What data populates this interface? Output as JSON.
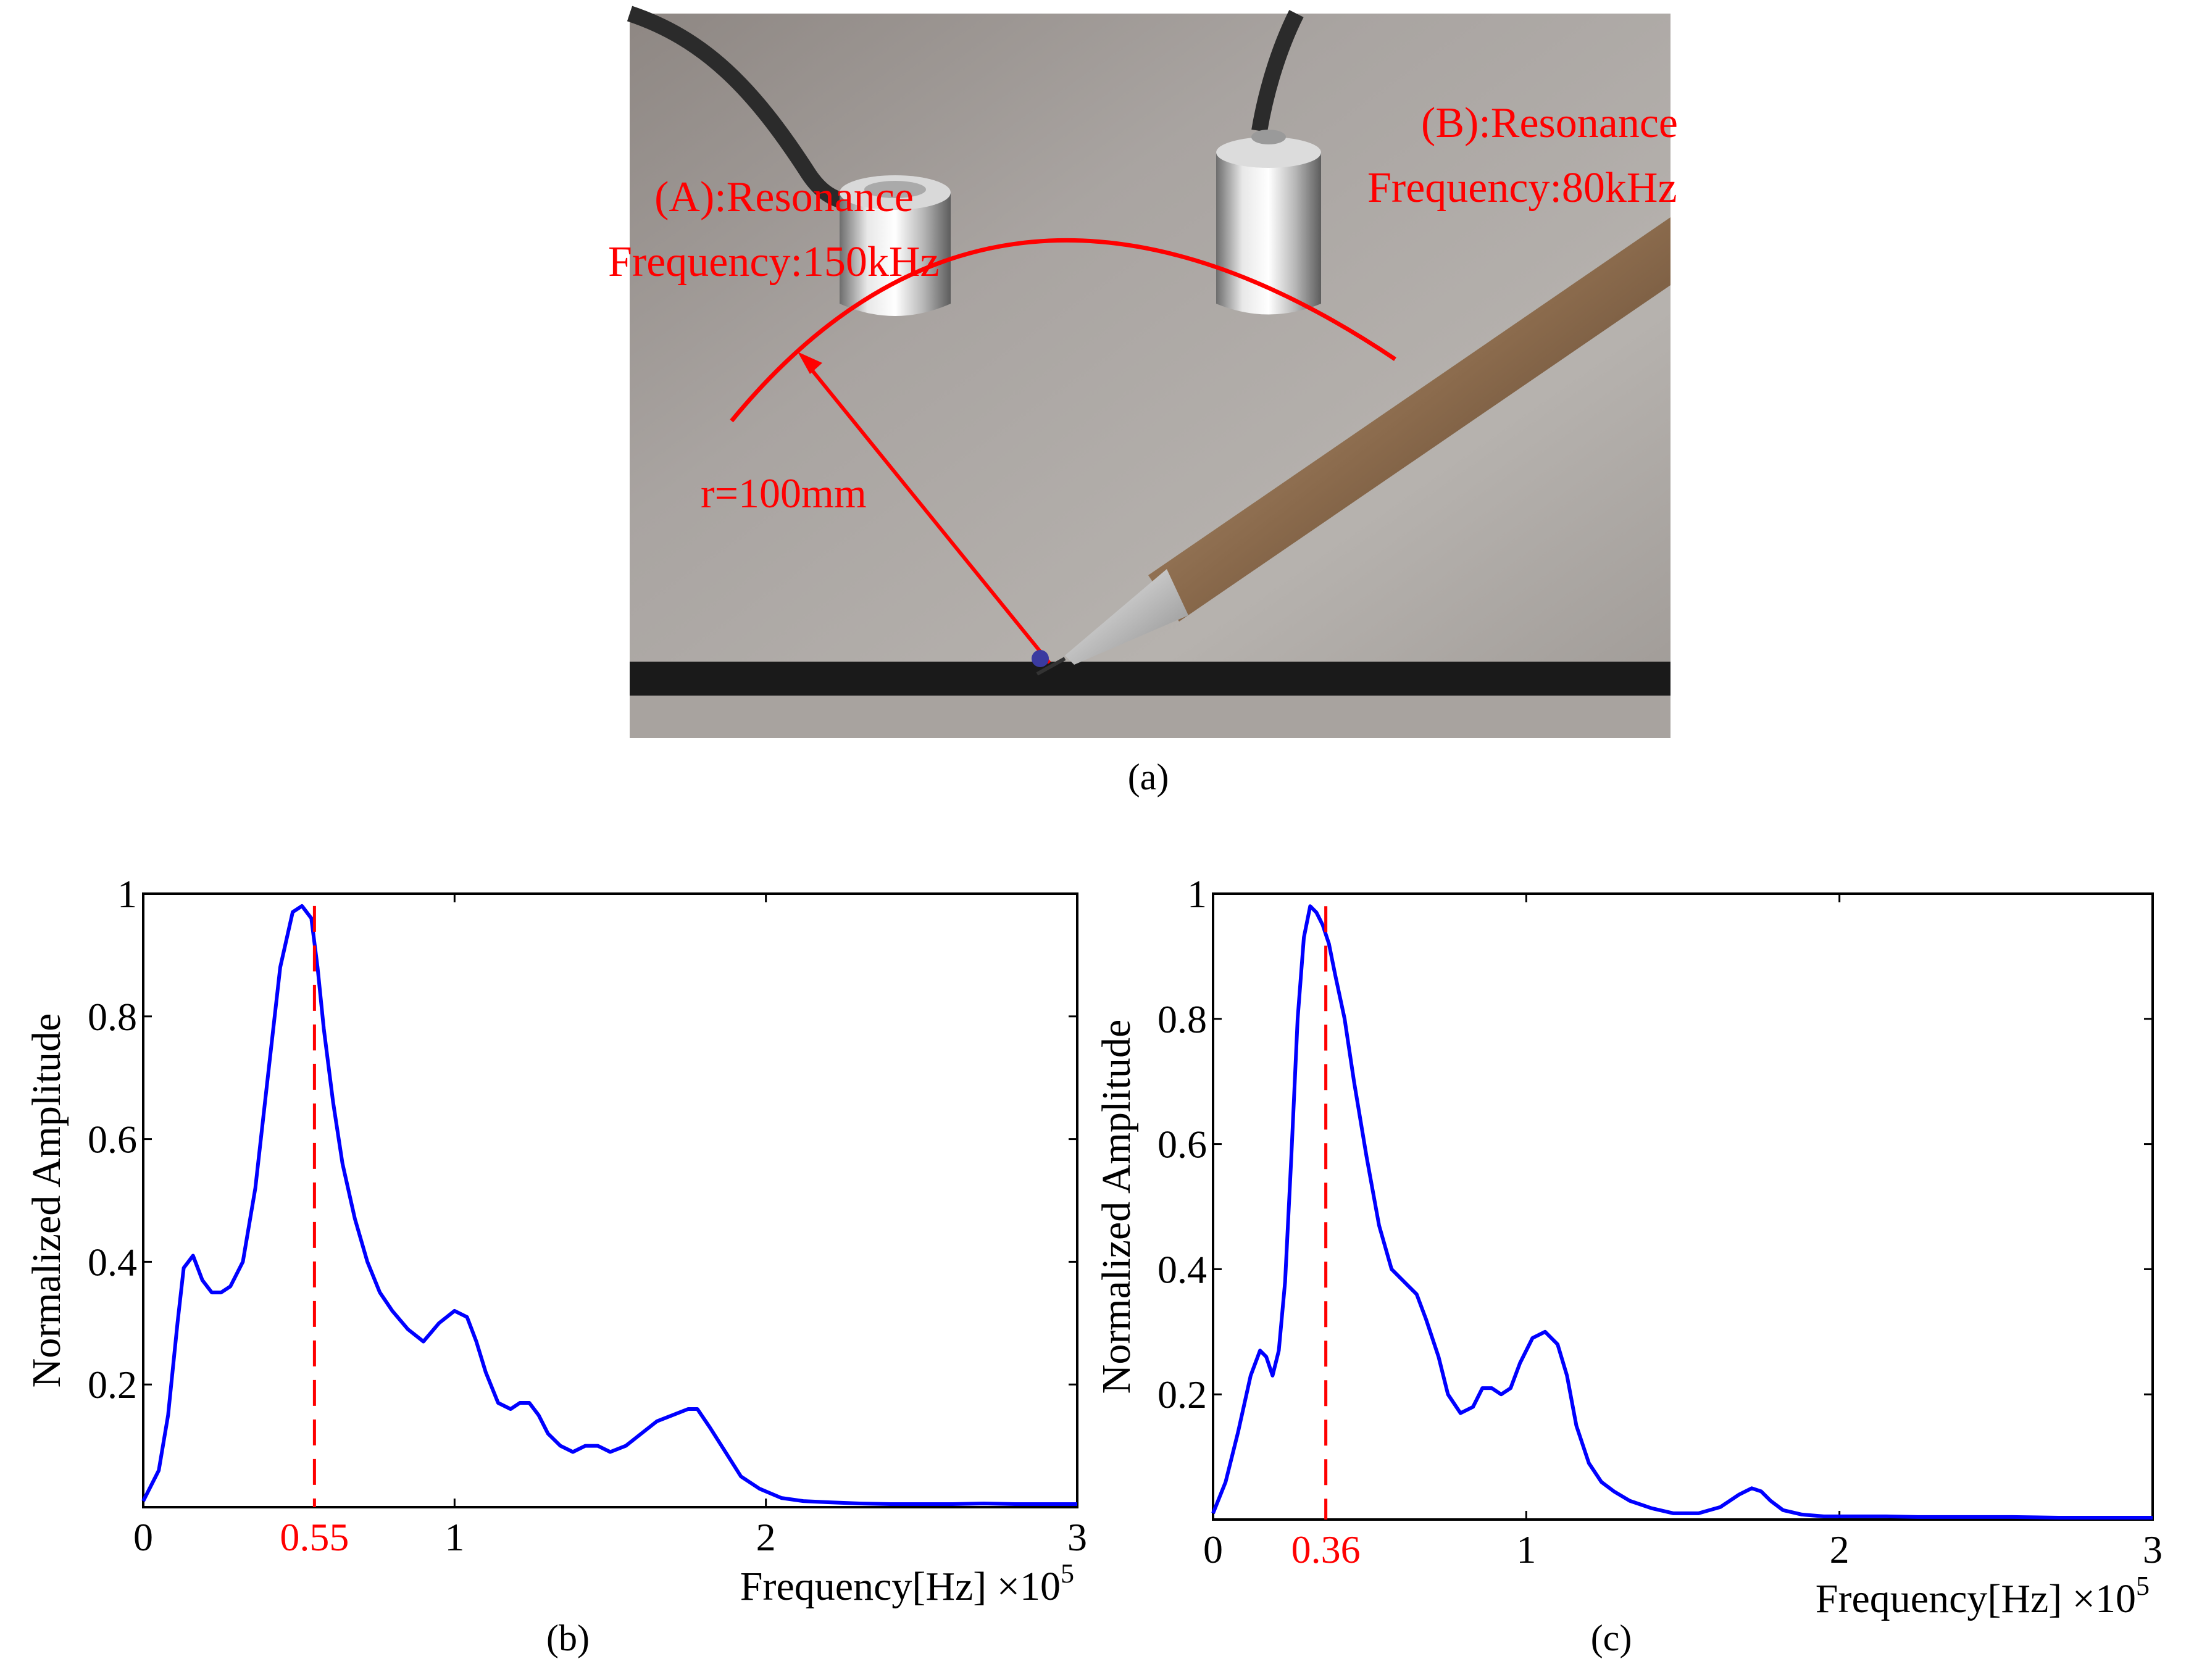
{
  "photo": {
    "label_a_line1": "(A):Resonance",
    "label_a_line2": "Frequency:150kHz",
    "label_b_line1": "(B):Resonance",
    "label_b_line2": "Frequency:80kHz",
    "radius_label": "r=100mm",
    "annotation_color": "#ff0000"
  },
  "captions": {
    "a": "(a)",
    "b": "(b)",
    "c": "(c)"
  },
  "chart_data": [
    {
      "type": "line",
      "title": "",
      "xlabel": "Frequency[Hz]",
      "x_multiplier": "×10^5",
      "ylabel": "Normalized Amplitude",
      "xlim": [
        0,
        3
      ],
      "ylim": [
        0,
        1
      ],
      "xticks": [
        0,
        1,
        2,
        3
      ],
      "yticks": [
        0.2,
        0.4,
        0.6,
        0.8,
        1
      ],
      "peak_marker": {
        "x": 0.55,
        "label": "0.55",
        "color": "#ff0000"
      },
      "line_color": "#0000ff",
      "series": [
        {
          "x": [
            0,
            0.05,
            0.08,
            0.11,
            0.13,
            0.16,
            0.19,
            0.22,
            0.25,
            0.28,
            0.32,
            0.36,
            0.4,
            0.44,
            0.48,
            0.51,
            0.54,
            0.56,
            0.58,
            0.61,
            0.64,
            0.68,
            0.72,
            0.76,
            0.8,
            0.85,
            0.9,
            0.95,
            1.0,
            1.04,
            1.07,
            1.1,
            1.14,
            1.18,
            1.21,
            1.24,
            1.27,
            1.3,
            1.34,
            1.38,
            1.42,
            1.46,
            1.5,
            1.55,
            1.6,
            1.65,
            1.7,
            1.75,
            1.78,
            1.82,
            1.87,
            1.92,
            1.98,
            2.05,
            2.12,
            2.2,
            2.3,
            2.4,
            2.5,
            2.6,
            2.7,
            2.8,
            2.9,
            3.0
          ],
          "y": [
            0.01,
            0.06,
            0.15,
            0.3,
            0.39,
            0.41,
            0.37,
            0.35,
            0.35,
            0.36,
            0.4,
            0.52,
            0.7,
            0.88,
            0.97,
            0.98,
            0.96,
            0.88,
            0.78,
            0.66,
            0.56,
            0.47,
            0.4,
            0.35,
            0.32,
            0.29,
            0.27,
            0.3,
            0.32,
            0.31,
            0.27,
            0.22,
            0.17,
            0.16,
            0.17,
            0.17,
            0.15,
            0.12,
            0.1,
            0.09,
            0.1,
            0.1,
            0.09,
            0.1,
            0.12,
            0.14,
            0.15,
            0.16,
            0.16,
            0.13,
            0.09,
            0.05,
            0.03,
            0.015,
            0.01,
            0.008,
            0.006,
            0.005,
            0.005,
            0.005,
            0.006,
            0.005,
            0.005,
            0.005
          ]
        }
      ]
    },
    {
      "type": "line",
      "title": "",
      "xlabel": "Frequency[Hz]",
      "x_multiplier": "×10^5",
      "ylabel": "Normalized Amplitude",
      "xlim": [
        0,
        3
      ],
      "ylim": [
        0,
        1
      ],
      "xticks": [
        0,
        1,
        2,
        3
      ],
      "yticks": [
        0.2,
        0.4,
        0.6,
        0.8,
        1
      ],
      "peak_marker": {
        "x": 0.36,
        "label": "0.36",
        "color": "#ff0000"
      },
      "line_color": "#0000ff",
      "series": [
        {
          "x": [
            0,
            0.04,
            0.08,
            0.12,
            0.15,
            0.17,
            0.19,
            0.21,
            0.23,
            0.25,
            0.27,
            0.29,
            0.31,
            0.33,
            0.35,
            0.37,
            0.39,
            0.42,
            0.45,
            0.49,
            0.53,
            0.57,
            0.61,
            0.65,
            0.68,
            0.72,
            0.75,
            0.79,
            0.83,
            0.86,
            0.89,
            0.92,
            0.95,
            0.98,
            1.02,
            1.06,
            1.1,
            1.13,
            1.16,
            1.2,
            1.24,
            1.28,
            1.33,
            1.4,
            1.47,
            1.55,
            1.62,
            1.68,
            1.72,
            1.75,
            1.78,
            1.82,
            1.88,
            1.95,
            2.05,
            2.15,
            2.25,
            2.4,
            2.55,
            2.7,
            2.85,
            3.0
          ],
          "y": [
            0.01,
            0.06,
            0.14,
            0.23,
            0.27,
            0.26,
            0.23,
            0.27,
            0.38,
            0.58,
            0.8,
            0.93,
            0.98,
            0.97,
            0.95,
            0.92,
            0.87,
            0.8,
            0.7,
            0.58,
            0.47,
            0.4,
            0.38,
            0.36,
            0.32,
            0.26,
            0.2,
            0.17,
            0.18,
            0.21,
            0.21,
            0.2,
            0.21,
            0.25,
            0.29,
            0.3,
            0.28,
            0.23,
            0.15,
            0.09,
            0.06,
            0.045,
            0.03,
            0.018,
            0.01,
            0.01,
            0.02,
            0.04,
            0.05,
            0.045,
            0.03,
            0.015,
            0.008,
            0.005,
            0.005,
            0.005,
            0.004,
            0.004,
            0.004,
            0.003,
            0.003,
            0.003
          ]
        }
      ]
    }
  ]
}
